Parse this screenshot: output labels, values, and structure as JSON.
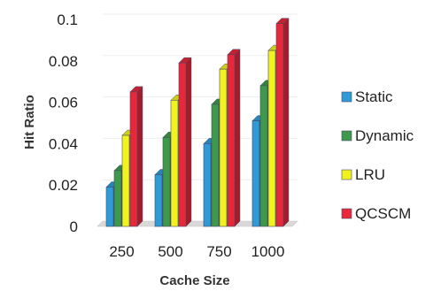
{
  "chart_data": {
    "type": "bar",
    "categories": [
      "250",
      "500",
      "750",
      "1000"
    ],
    "series": [
      {
        "name": "Static",
        "values": [
          0.019,
          0.025,
          0.04,
          0.051
        ],
        "color": "#2E9BD6"
      },
      {
        "name": "Dynamic",
        "values": [
          0.027,
          0.043,
          0.059,
          0.068
        ],
        "color": "#3E9A4A"
      },
      {
        "name": "LRU",
        "values": [
          0.044,
          0.061,
          0.076,
          0.085
        ],
        "color": "#F2F21E"
      },
      {
        "name": "QCSCM",
        "values": [
          0.065,
          0.079,
          0.083,
          0.098
        ],
        "color": "#E8283A"
      }
    ],
    "xlabel": "Cache Size",
    "ylabel": "Hit Ratio",
    "ylim": [
      0,
      0.1
    ],
    "yticks": [
      "0",
      "0.02",
      "0.04",
      "0.06",
      "0.08",
      "0.1"
    ],
    "grid": false,
    "legend_position": "right"
  }
}
